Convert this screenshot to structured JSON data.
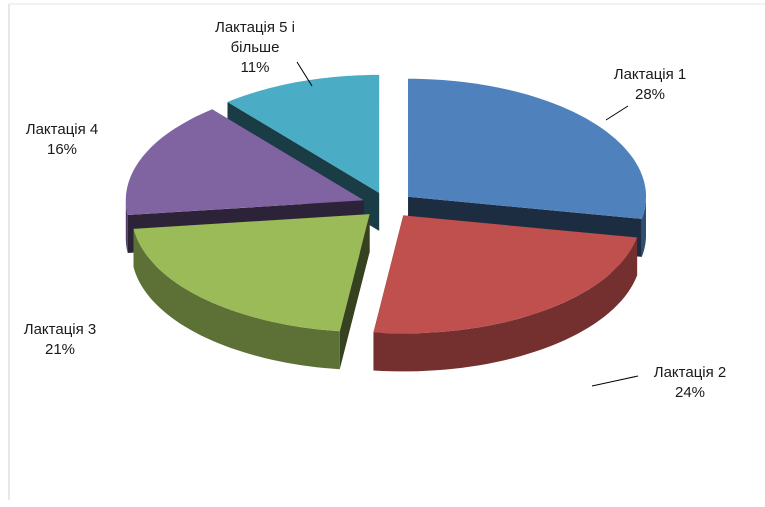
{
  "chart_data": {
    "type": "pie3d",
    "categories": [
      "Лактація 1",
      "Лактація 2",
      "Лактація 3",
      "Лактація 4",
      "Лактація 5 і більше"
    ],
    "values": [
      28,
      24,
      21,
      16,
      11
    ],
    "value_labels": [
      "28%",
      "24%",
      "21%",
      "16%",
      "11%"
    ],
    "colors": [
      "#4f81bd",
      "#c0504d",
      "#9bbb59",
      "#8064a2",
      "#4bacc6"
    ]
  }
}
